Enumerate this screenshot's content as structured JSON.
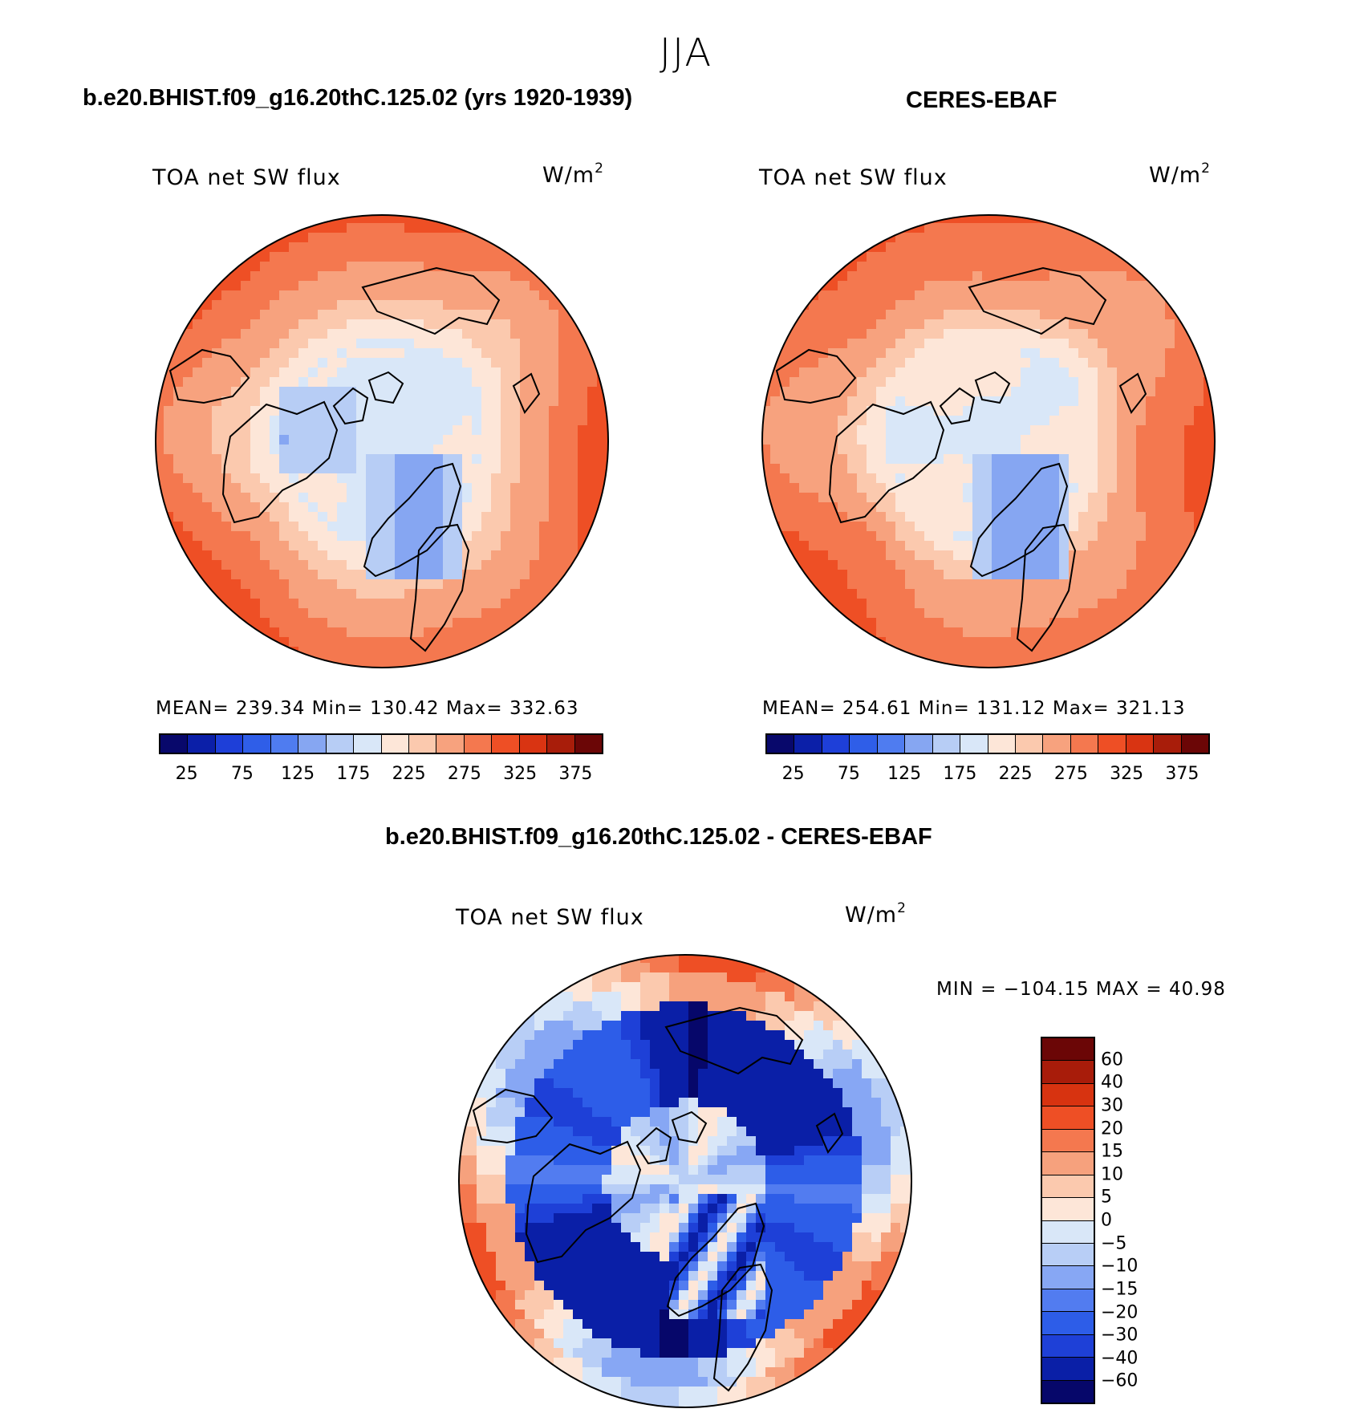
{
  "figure": {
    "season": "JJA",
    "mean_palette": [
      "#08086b",
      "#0b1fa8",
      "#1e3fd8",
      "#2f5ee8",
      "#4f7cf0",
      "#86a6f2",
      "#b7cdf5",
      "#d9e7f8",
      "#fde6d8",
      "#fbc9ae",
      "#f7a27e",
      "#f4784f",
      "#ee4f25",
      "#d93412",
      "#a81d0a",
      "#6b0606"
    ],
    "diff_palette": [
      "#06076a",
      "#0a1fa7",
      "#1e40d7",
      "#2d5de8",
      "#527cf0",
      "#87a7f4",
      "#b8cef6",
      "#d9e7f8",
      "#fde6d8",
      "#fbc9ae",
      "#f6a17d",
      "#f4784f",
      "#ee4f25",
      "#d73310",
      "#a81c0a",
      "#6b0606"
    ],
    "coast_color": "#000000"
  },
  "panels": [
    {
      "title": "b.e20.BHIST.f09_g16.20thC.125.02 (yrs 1920-1939)",
      "variable": "TOA net SW flux",
      "units_base": "W/m",
      "units_exp": "2",
      "stats": "MEAN= 239.34   Min= 130.42   Max= 332.63"
    },
    {
      "title": "CERES-EBAF",
      "variable": "TOA net SW flux",
      "units_base": "W/m",
      "units_exp": "2",
      "stats": "MEAN= 254.61   Min= 131.12   Max= 321.13"
    }
  ],
  "diff_panel": {
    "title": "b.e20.BHIST.f09_g16.20thC.125.02 - CERES-EBAF",
    "variable": "TOA net SW flux",
    "units_base": "W/m",
    "units_exp": "2",
    "stats": "MIN = −104.15 MAX =   40.98"
  },
  "chart_data": [
    {
      "type": "heatmap",
      "projection": "north polar stereographic",
      "title": "b.e20.BHIST.f09_g16.20thC.125.02 (yrs 1920-1939)",
      "variable": "TOA net SW flux",
      "units": "W/m2",
      "mean": 239.34,
      "min": 130.42,
      "max": 332.63,
      "colorbar_ticks": [
        "25",
        "75",
        "125",
        "175",
        "225",
        "275",
        "325",
        "375"
      ],
      "colorbar_levels": [
        25,
        50,
        75,
        100,
        125,
        150,
        175,
        200,
        225,
        250,
        275,
        300,
        325,
        350,
        375
      ],
      "field": {
        "pole": 190,
        "mid": 250,
        "edge": 300,
        "greenland": 160
      }
    },
    {
      "type": "heatmap",
      "projection": "north polar stereographic",
      "title": "CERES-EBAF",
      "variable": "TOA net SW flux",
      "units": "W/m2",
      "mean": 254.61,
      "min": 131.12,
      "max": 321.13,
      "colorbar_ticks": [
        "25",
        "75",
        "125",
        "175",
        "225",
        "275",
        "325",
        "375"
      ],
      "colorbar_levels": [
        25,
        50,
        75,
        100,
        125,
        150,
        175,
        200,
        225,
        250,
        275,
        300,
        325,
        350,
        375
      ],
      "field": {
        "pole": 195,
        "mid": 262,
        "edge": 295,
        "greenland": 155
      }
    },
    {
      "type": "heatmap",
      "projection": "north polar stereographic",
      "title": "b.e20.BHIST.f09_g16.20thC.125.02 - CERES-EBAF",
      "variable": "TOA net SW flux",
      "units": "W/m2",
      "min": -104.15,
      "max": 40.98,
      "colorbar_ticks": [
        "60",
        "40",
        "30",
        "20",
        "15",
        "10",
        "5",
        "0",
        "−5",
        "−10",
        "−15",
        "−20",
        "−30",
        "−40",
        "−60"
      ],
      "colorbar_levels": [
        -60,
        -40,
        -30,
        -20,
        -15,
        -10,
        -5,
        0,
        5,
        10,
        15,
        20,
        30,
        40,
        60
      ],
      "field": {
        "pole": -5,
        "ring": -40,
        "edge": 8
      }
    }
  ]
}
